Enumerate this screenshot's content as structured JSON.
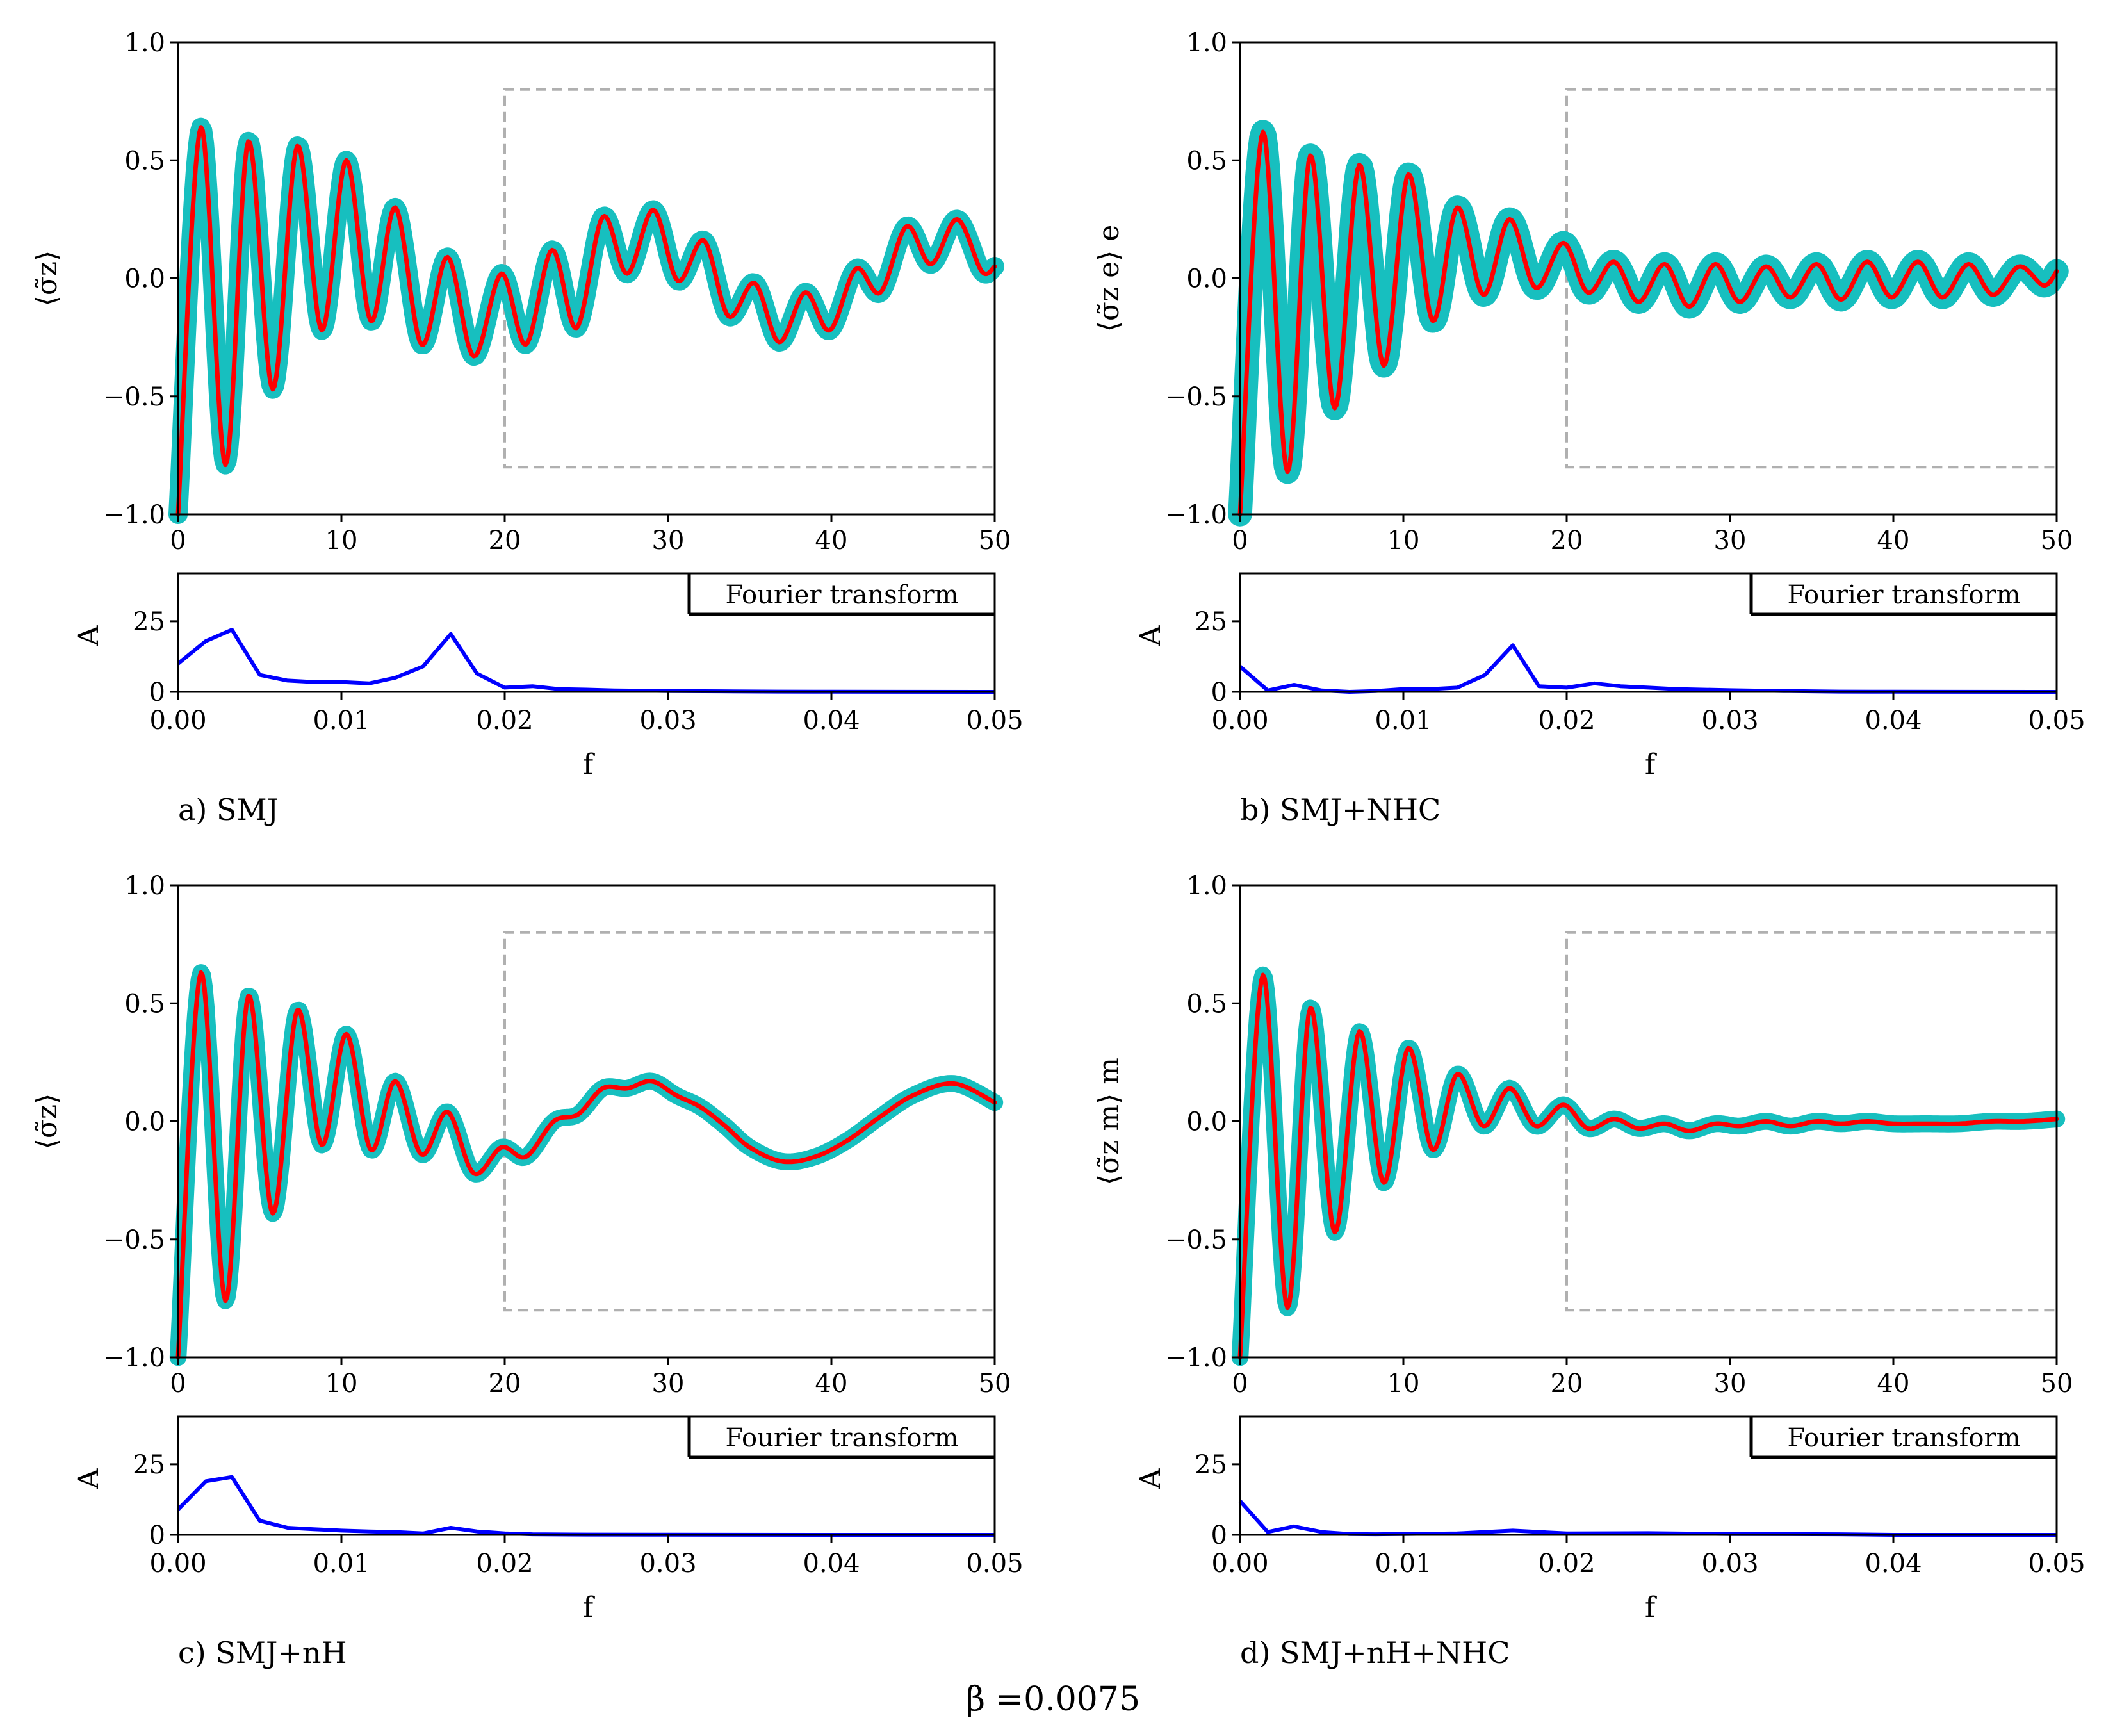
{
  "colors": {
    "envelope": "#17bfbf",
    "mean": "#ff0000",
    "fourier": "#0000ff",
    "window": "#b0b0b0",
    "axes": "#000000"
  },
  "supertitle": "β =0.0075",
  "chart_data": [
    {
      "type": "line",
      "panel": "a",
      "caption": "a) SMJ",
      "ylabel": "⟨σ̃z⟩",
      "xlim": [
        0,
        50
      ],
      "ylim": [
        -1.0,
        1.0
      ],
      "xticks": [
        "0",
        "10",
        "20",
        "30",
        "40",
        "50"
      ],
      "yticks": [
        "−1.0",
        "−0.5",
        "0.0",
        "0.5",
        "1.0"
      ],
      "window": {
        "x": [
          20,
          50
        ],
        "y": [
          -0.8,
          0.8
        ]
      },
      "series": [
        {
          "name": "mean",
          "x": [
            0,
            1.4,
            2.9,
            4.3,
            5.8,
            7.3,
            8.8,
            10.3,
            11.8,
            13.3,
            14.9,
            16.5,
            18.1,
            19.8,
            21.3,
            22.9,
            24.4,
            26.0,
            27.5,
            29.1,
            30.6,
            32.2,
            33.7,
            35.3,
            36.8,
            38.4,
            39.9,
            41.5,
            43.0,
            44.6,
            46.1,
            47.7,
            49.2,
            50
          ],
          "y": [
            -1.0,
            0.64,
            -0.79,
            0.58,
            -0.47,
            0.56,
            -0.22,
            0.5,
            -0.18,
            0.3,
            -0.28,
            0.09,
            -0.33,
            0.02,
            -0.28,
            0.12,
            -0.21,
            0.26,
            0.02,
            0.29,
            -0.01,
            0.16,
            -0.16,
            -0.02,
            -0.27,
            -0.06,
            -0.22,
            0.04,
            -0.06,
            0.22,
            0.06,
            0.25,
            0.03,
            0.05
          ]
        },
        {
          "name": "envelope_halfwidth",
          "value": 0.03
        }
      ],
      "fourier": {
        "type": "line",
        "ylabel": "A",
        "xlabel": "f",
        "legend": "Fourier transform",
        "xlim": [
          0,
          0.05
        ],
        "ylim": [
          0,
          42
        ],
        "xticks": [
          "0.00",
          "0.01",
          "0.02",
          "0.03",
          "0.04",
          "0.05"
        ],
        "yticks": [
          "0",
          "25"
        ],
        "x": [
          0,
          0.0017,
          0.0033,
          0.005,
          0.0067,
          0.0083,
          0.01,
          0.0117,
          0.0133,
          0.015,
          0.0167,
          0.0183,
          0.02,
          0.0217,
          0.0233,
          0.025,
          0.0267,
          0.03,
          0.0333,
          0.0367,
          0.04,
          0.05
        ],
        "y": [
          10,
          18,
          22,
          6,
          4,
          3.5,
          3.5,
          3,
          5,
          9,
          20.5,
          6.5,
          1.5,
          2,
          1,
          0.8,
          0.5,
          0.3,
          0.2,
          0.1,
          0.05,
          0
        ]
      }
    },
    {
      "type": "line",
      "panel": "b",
      "caption": "b) SMJ+NHC",
      "ylabel": "⟨σ̃z e⟩ e",
      "xlim": [
        0,
        50
      ],
      "ylim": [
        -1.0,
        1.0
      ],
      "xticks": [
        "0",
        "10",
        "20",
        "30",
        "40",
        "50"
      ],
      "yticks": [
        "−1.0",
        "−0.5",
        "0.0",
        "0.5",
        "1.0"
      ],
      "window": {
        "x": [
          20,
          50
        ],
        "y": [
          -0.8,
          0.8
        ]
      },
      "series": [
        {
          "name": "mean",
          "x": [
            0,
            1.4,
            2.9,
            4.3,
            5.8,
            7.3,
            8.8,
            10.3,
            11.8,
            13.3,
            14.9,
            16.5,
            18.1,
            19.8,
            21.3,
            22.9,
            24.4,
            26.0,
            27.5,
            29.1,
            30.6,
            32.2,
            33.7,
            35.3,
            36.8,
            38.4,
            39.9,
            41.5,
            43.0,
            44.6,
            46.1,
            47.7,
            49.2,
            50
          ],
          "y": [
            -1.0,
            0.62,
            -0.82,
            0.52,
            -0.55,
            0.48,
            -0.37,
            0.44,
            -0.18,
            0.3,
            -0.07,
            0.25,
            -0.04,
            0.15,
            -0.06,
            0.07,
            -0.1,
            0.06,
            -0.12,
            0.06,
            -0.1,
            0.05,
            -0.08,
            0.06,
            -0.09,
            0.07,
            -0.08,
            0.07,
            -0.08,
            0.06,
            -0.07,
            0.05,
            -0.03,
            0.03
          ]
        },
        {
          "name": "envelope_halfwidth",
          "value": 0.04
        }
      ],
      "fourier": {
        "type": "line",
        "ylabel": "A",
        "xlabel": "f",
        "legend": "Fourier transform",
        "xlim": [
          0,
          0.05
        ],
        "ylim": [
          0,
          42
        ],
        "xticks": [
          "0.00",
          "0.01",
          "0.02",
          "0.03",
          "0.04",
          "0.05"
        ],
        "yticks": [
          "0",
          "25"
        ],
        "x": [
          0,
          0.0017,
          0.0033,
          0.005,
          0.0067,
          0.0083,
          0.01,
          0.0117,
          0.0133,
          0.015,
          0.0167,
          0.0183,
          0.02,
          0.0217,
          0.0233,
          0.025,
          0.0267,
          0.03,
          0.0333,
          0.0367,
          0.04,
          0.05
        ],
        "y": [
          9,
          0.5,
          2.5,
          0.5,
          0,
          0.3,
          1,
          1,
          1.5,
          6,
          16.5,
          2,
          1.5,
          3,
          2,
          1.5,
          1,
          0.6,
          0.3,
          0.1,
          0.05,
          0
        ]
      }
    },
    {
      "type": "line",
      "panel": "c",
      "caption": "c) SMJ+nH",
      "ylabel": "⟨σ̃z⟩",
      "xlim": [
        0,
        50
      ],
      "ylim": [
        -1.0,
        1.0
      ],
      "xticks": [
        "0",
        "10",
        "20",
        "30",
        "40",
        "50"
      ],
      "yticks": [
        "−1.0",
        "−0.5",
        "0.0",
        "0.5",
        "1.0"
      ],
      "window": {
        "x": [
          20,
          50
        ],
        "y": [
          -0.8,
          0.8
        ]
      },
      "series": [
        {
          "name": "mean",
          "x": [
            0,
            1.4,
            2.9,
            4.3,
            5.8,
            7.3,
            8.8,
            10.3,
            11.8,
            13.3,
            14.9,
            16.5,
            18.1,
            19.8,
            21.3,
            23.0,
            24.5,
            26.0,
            27.5,
            29.0,
            30.5,
            32.0,
            33.5,
            35.0,
            37.0,
            39.0,
            41.0,
            43.0,
            45.0,
            47.5,
            50
          ],
          "y": [
            -1.0,
            0.63,
            -0.76,
            0.53,
            -0.39,
            0.47,
            -0.1,
            0.37,
            -0.12,
            0.17,
            -0.14,
            0.04,
            -0.22,
            -0.11,
            -0.15,
            0.0,
            0.03,
            0.14,
            0.14,
            0.17,
            0.11,
            0.06,
            -0.02,
            -0.11,
            -0.17,
            -0.15,
            -0.08,
            0.02,
            0.11,
            0.16,
            0.08
          ]
        },
        {
          "name": "envelope_halfwidth",
          "value": 0.025
        }
      ],
      "fourier": {
        "type": "line",
        "ylabel": "A",
        "xlabel": "f",
        "legend": "Fourier transform",
        "xlim": [
          0,
          0.05
        ],
        "ylim": [
          0,
          42
        ],
        "xticks": [
          "0.00",
          "0.01",
          "0.02",
          "0.03",
          "0.04",
          "0.05"
        ],
        "yticks": [
          "0",
          "25"
        ],
        "x": [
          0,
          0.0017,
          0.0033,
          0.005,
          0.0067,
          0.0083,
          0.01,
          0.0117,
          0.0133,
          0.015,
          0.0167,
          0.0183,
          0.02,
          0.0217,
          0.025,
          0.03,
          0.04,
          0.05
        ],
        "y": [
          9,
          19,
          20.5,
          5,
          2.5,
          2,
          1.5,
          1.2,
          1,
          0.5,
          2.5,
          1.2,
          0.5,
          0.2,
          0.1,
          0.05,
          0,
          0
        ]
      }
    },
    {
      "type": "line",
      "panel": "d",
      "caption": "d) SMJ+nH+NHC",
      "ylabel": "⟨σ̃z m⟩ m",
      "xlim": [
        0,
        50
      ],
      "ylim": [
        -1.0,
        1.0
      ],
      "xticks": [
        "0",
        "10",
        "20",
        "30",
        "40",
        "50"
      ],
      "yticks": [
        "−1.0",
        "−0.5",
        "0.0",
        "0.5",
        "1.0"
      ],
      "window": {
        "x": [
          20,
          50
        ],
        "y": [
          -0.8,
          0.8
        ]
      },
      "series": [
        {
          "name": "mean",
          "x": [
            0,
            1.4,
            2.9,
            4.3,
            5.8,
            7.3,
            8.8,
            10.3,
            11.8,
            13.3,
            14.9,
            16.5,
            18.1,
            19.8,
            21.3,
            22.9,
            24.4,
            26.0,
            27.5,
            29.1,
            30.6,
            32.2,
            33.7,
            35.3,
            36.8,
            38.4,
            40.0,
            42.0,
            44.0,
            46.0,
            48.0,
            50
          ],
          "y": [
            -1.0,
            0.62,
            -0.79,
            0.48,
            -0.47,
            0.38,
            -0.26,
            0.31,
            -0.12,
            0.2,
            -0.02,
            0.14,
            -0.02,
            0.07,
            -0.03,
            0.01,
            -0.03,
            -0.01,
            -0.04,
            -0.01,
            -0.02,
            0.0,
            -0.02,
            0.0,
            -0.01,
            0.0,
            -0.01,
            -0.01,
            -0.01,
            0.0,
            0.0,
            0.01
          ]
        },
        {
          "name": "envelope_halfwidth",
          "value": 0.025
        }
      ],
      "fourier": {
        "type": "line",
        "ylabel": "A",
        "xlabel": "f",
        "legend": "Fourier transform",
        "xlim": [
          0,
          0.05
        ],
        "ylim": [
          0,
          42
        ],
        "xticks": [
          "0.00",
          "0.01",
          "0.02",
          "0.03",
          "0.04",
          "0.05"
        ],
        "yticks": [
          "0",
          "25"
        ],
        "x": [
          0,
          0.0017,
          0.0033,
          0.005,
          0.0067,
          0.0083,
          0.01,
          0.0133,
          0.0167,
          0.02,
          0.025,
          0.03,
          0.0367,
          0.04,
          0.05
        ],
        "y": [
          12,
          1,
          3,
          1,
          0.3,
          0.2,
          0.3,
          0.5,
          1.5,
          0.5,
          0.6,
          0.3,
          0.2,
          0,
          0
        ]
      }
    }
  ]
}
